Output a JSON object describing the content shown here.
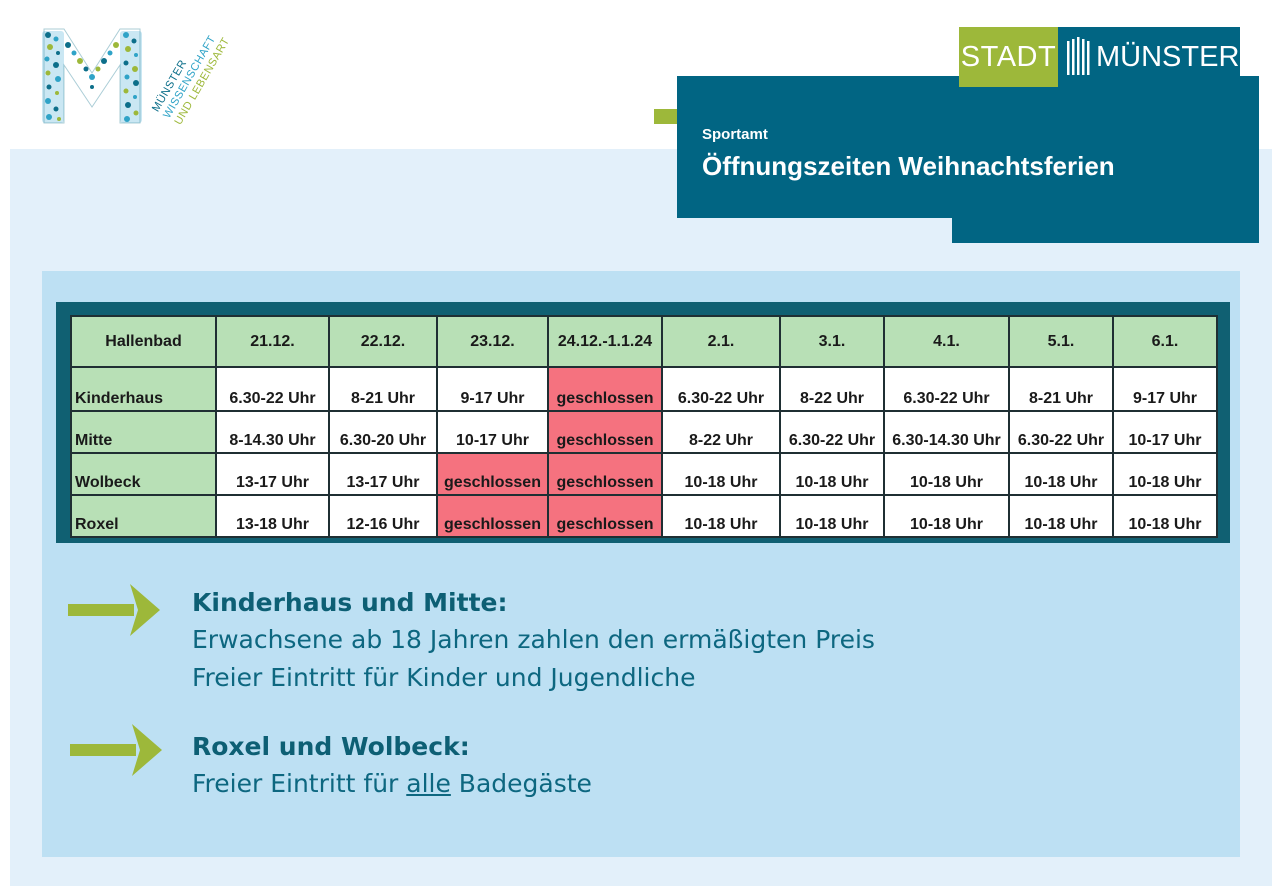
{
  "logo": {
    "line1": "MÜNSTER",
    "line2": "WISSENSCHAFT",
    "line3": "UND LEBENSART"
  },
  "brand": {
    "stadt": "STADT",
    "muenster": "MÜNSTER"
  },
  "header": {
    "subtitle": "Sportamt",
    "title": "Öffnungszeiten Weihnachtsferien"
  },
  "table": {
    "corner": "Hallenbad",
    "columns": [
      "21.12.",
      "22.12.",
      "23.12.",
      "24.12.-1.1.24",
      "2.1.",
      "3.1.",
      "4.1.",
      "5.1.",
      "6.1."
    ],
    "rows": [
      {
        "name": "Kinderhaus",
        "cells": [
          "6.30-22 Uhr",
          "8-21 Uhr",
          "9-17 Uhr",
          "geschlossen",
          "6.30-22 Uhr",
          "8-22 Uhr",
          "6.30-22 Uhr",
          "8-21 Uhr",
          "9-17 Uhr"
        ]
      },
      {
        "name": "Mitte",
        "cells": [
          "8-14.30 Uhr",
          "6.30-20 Uhr",
          "10-17 Uhr",
          "geschlossen",
          "8-22 Uhr",
          "6.30-22 Uhr",
          "6.30-14.30 Uhr",
          "6.30-22 Uhr",
          "10-17 Uhr"
        ]
      },
      {
        "name": "Wolbeck",
        "cells": [
          "13-17 Uhr",
          "13-17 Uhr",
          "geschlossen",
          "geschlossen",
          "10-18 Uhr",
          "10-18 Uhr",
          "10-18 Uhr",
          "10-18 Uhr",
          "10-18 Uhr"
        ]
      },
      {
        "name": "Roxel",
        "cells": [
          "13-18 Uhr",
          "12-16 Uhr",
          "geschlossen",
          "geschlossen",
          "10-18 Uhr",
          "10-18 Uhr",
          "10-18 Uhr",
          "10-18 Uhr",
          "10-18 Uhr"
        ]
      }
    ]
  },
  "notes": {
    "note1": {
      "heading": "Kinderhaus und Mitte:",
      "line1": "Erwachsene ab 18 Jahren zahlen den ermäßigten Preis",
      "line2": "Freier Eintritt für Kinder und Jugendliche"
    },
    "note2": {
      "heading": "Roxel und Wolbeck:",
      "line1_pre": "Freier Eintritt für ",
      "line1_emph": "alle",
      "line1_post": " Badegäste"
    }
  },
  "colors": {
    "brand_green": "#9db83a",
    "brand_blue": "#016583",
    "closed_red": "#f5727f",
    "header_green": "#b8e0b6"
  }
}
